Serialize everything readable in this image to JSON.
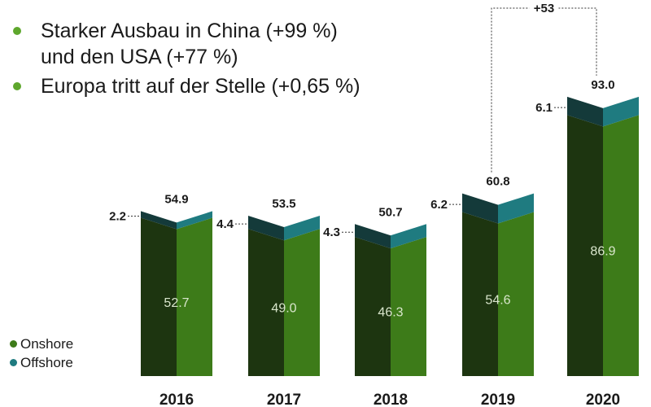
{
  "bullets": [
    {
      "text": "Starker Ausbau in China (+99 %)",
      "text2": "und den USA (+77 %)"
    },
    {
      "text": "Europa tritt auf der Stelle (+0,65 %)",
      "text2": ""
    }
  ],
  "colors": {
    "onshore_front": "#3d7b19",
    "onshore_side": "#1d3510",
    "offshore_front": "#1f7b80",
    "offshore_side": "#143a3a",
    "bullet": "#5ea72d",
    "text": "#1a1a1a"
  },
  "chart_data": {
    "type": "bar",
    "stacked": true,
    "categories": [
      "2016",
      "2017",
      "2018",
      "2019",
      "2020"
    ],
    "series": [
      {
        "name": "Onshore",
        "values": [
          52.7,
          49.0,
          46.3,
          54.6,
          86.9
        ]
      },
      {
        "name": "Offshore",
        "values": [
          2.2,
          4.4,
          4.3,
          6.2,
          6.1
        ]
      }
    ],
    "totals": [
      "54.9",
      "53.5",
      "50.7",
      "60.8",
      "93.0"
    ],
    "onshore_labels": [
      "52.7",
      "49.0",
      "46.3",
      "54.6",
      "86.9"
    ],
    "offshore_labels": [
      "2.2",
      "4.4",
      "4.3",
      "6.2",
      "6.1"
    ],
    "annotation": {
      "text": "+53",
      "from": "2019",
      "to": "2020"
    },
    "legend_position": "bottom-left"
  },
  "legend": [
    {
      "label": "Onshore",
      "color": "#3d7b19"
    },
    {
      "label": "Offshore",
      "color": "#1f7b80"
    }
  ]
}
